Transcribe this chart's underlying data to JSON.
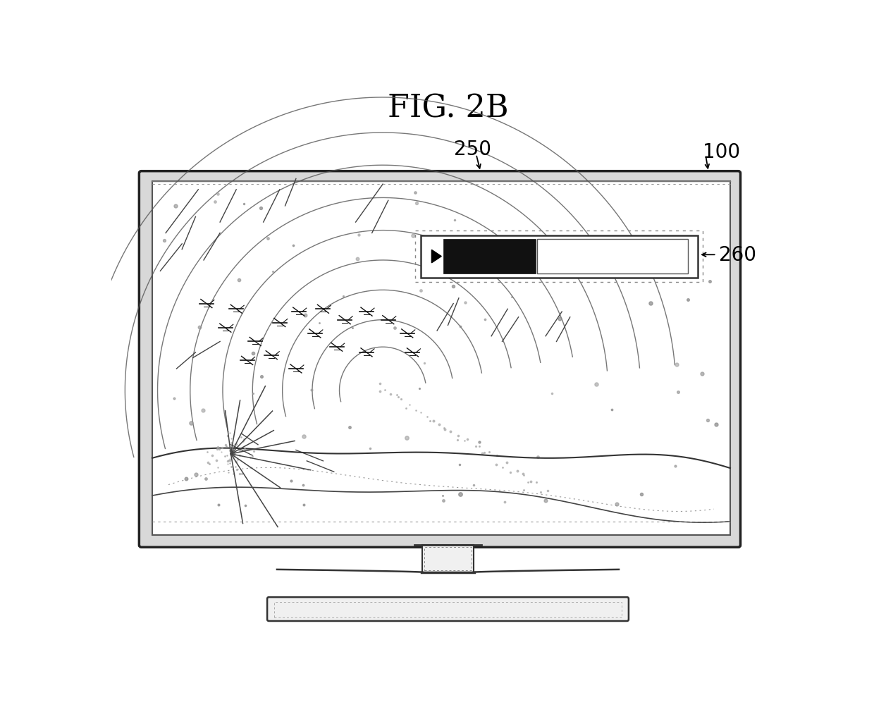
{
  "title": "FIG. 2B",
  "title_fontsize": 32,
  "title_fontfamily": "serif",
  "bg_color": "#ffffff",
  "label_100": "100",
  "label_250": "250",
  "label_260": "260",
  "label_fontsize": 20,
  "fig_w": 12.4,
  "fig_h": 10.04
}
